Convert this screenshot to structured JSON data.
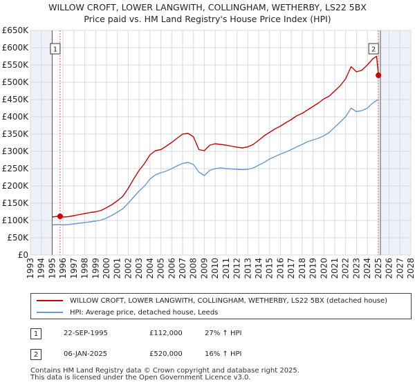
{
  "title_line1": "WILLOW CROFT, LOWER LANGWITH, COLLINGHAM, WETHERBY, LS22 5BX",
  "title_line2": "Price paid vs. HM Land Registry's House Price Index (HPI)",
  "chart_data": {
    "type": "line",
    "xlim": [
      1993,
      2028
    ],
    "ylim": [
      0,
      650000
    ],
    "x_ticks": [
      "1993",
      "1994",
      "1995",
      "1996",
      "1997",
      "1998",
      "1999",
      "2000",
      "2001",
      "2002",
      "2003",
      "2004",
      "2005",
      "2006",
      "2007",
      "2008",
      "2009",
      "2010",
      "2011",
      "2012",
      "2013",
      "2014",
      "2015",
      "2016",
      "2017",
      "2018",
      "2019",
      "2020",
      "2021",
      "2022",
      "2023",
      "2024",
      "2025",
      "2026",
      "2027",
      "2028"
    ],
    "y_ticks": [
      {
        "value": 0,
        "label": "£0"
      },
      {
        "value": 50000,
        "label": "£50K"
      },
      {
        "value": 100000,
        "label": "£100K"
      },
      {
        "value": 150000,
        "label": "£150K"
      },
      {
        "value": 200000,
        "label": "£200K"
      },
      {
        "value": 250000,
        "label": "£250K"
      },
      {
        "value": 300000,
        "label": "£300K"
      },
      {
        "value": 350000,
        "label": "£350K"
      },
      {
        "value": 400000,
        "label": "£400K"
      },
      {
        "value": 450000,
        "label": "£450K"
      },
      {
        "value": 500000,
        "label": "£500K"
      },
      {
        "value": 550000,
        "label": "£550K"
      },
      {
        "value": 600000,
        "label": "£600K"
      },
      {
        "value": 650000,
        "label": "£650K"
      }
    ],
    "data_range": [
      1995.0,
      2025.2
    ],
    "series": [
      {
        "name": "WILLOW CROFT, LOWER LANGWITH, COLLINGHAM, WETHERBY, LS22 5BX (detached house)",
        "color": "#cc0000",
        "x": [
          1995.0,
          1995.5,
          1995.73,
          1996.0,
          1996.5,
          1997.0,
          1997.5,
          1998.0,
          1998.5,
          1999.0,
          1999.5,
          2000.0,
          2000.5,
          2001.0,
          2001.5,
          2002.0,
          2002.5,
          2003.0,
          2003.5,
          2004.0,
          2004.5,
          2005.0,
          2005.5,
          2006.0,
          2006.5,
          2007.0,
          2007.5,
          2008.0,
          2008.5,
          2009.0,
          2009.5,
          2010.0,
          2010.5,
          2011.0,
          2011.5,
          2012.0,
          2012.5,
          2013.0,
          2013.5,
          2014.0,
          2014.5,
          2015.0,
          2015.5,
          2016.0,
          2016.5,
          2017.0,
          2017.5,
          2018.0,
          2018.5,
          2019.0,
          2019.5,
          2020.0,
          2020.5,
          2021.0,
          2021.5,
          2022.0,
          2022.5,
          2023.0,
          2023.5,
          2024.0,
          2024.5,
          2024.85,
          2025.02
        ],
        "values": [
          110000,
          112000,
          112000,
          110000,
          111000,
          114000,
          117000,
          120000,
          123000,
          125000,
          129000,
          137000,
          146000,
          157000,
          170000,
          193000,
          220000,
          245000,
          265000,
          290000,
          302000,
          305000,
          315000,
          326000,
          338000,
          350000,
          352000,
          342000,
          305000,
          302000,
          318000,
          322000,
          320000,
          318000,
          315000,
          312000,
          310000,
          313000,
          320000,
          332000,
          345000,
          355000,
          365000,
          373000,
          383000,
          392000,
          403000,
          410000,
          420000,
          430000,
          440000,
          452000,
          460000,
          475000,
          490000,
          510000,
          545000,
          530000,
          535000,
          550000,
          568000,
          575000,
          520000
        ]
      },
      {
        "name": "HPI: Average price, detached house, Leeds",
        "color": "#6699cc",
        "x": [
          1995.0,
          1995.5,
          1996.0,
          1996.5,
          1997.0,
          1997.5,
          1998.0,
          1998.5,
          1999.0,
          1999.5,
          2000.0,
          2000.5,
          2001.0,
          2001.5,
          2002.0,
          2002.5,
          2003.0,
          2003.5,
          2004.0,
          2004.5,
          2005.0,
          2005.5,
          2006.0,
          2006.5,
          2007.0,
          2007.5,
          2008.0,
          2008.5,
          2009.0,
          2009.5,
          2010.0,
          2010.5,
          2011.0,
          2011.5,
          2012.0,
          2012.5,
          2013.0,
          2013.5,
          2014.0,
          2014.5,
          2015.0,
          2015.5,
          2016.0,
          2016.5,
          2017.0,
          2017.5,
          2018.0,
          2018.5,
          2019.0,
          2019.5,
          2020.0,
          2020.5,
          2021.0,
          2021.5,
          2022.0,
          2022.5,
          2023.0,
          2023.5,
          2024.0,
          2024.5,
          2025.0
        ],
        "values": [
          87000,
          88000,
          87000,
          88000,
          90000,
          92000,
          94000,
          96000,
          98000,
          101000,
          107000,
          115000,
          124000,
          134000,
          150000,
          168000,
          185000,
          200000,
          220000,
          232000,
          238000,
          243000,
          250000,
          258000,
          265000,
          268000,
          262000,
          240000,
          230000,
          245000,
          250000,
          252000,
          250000,
          249000,
          248000,
          247000,
          248000,
          252000,
          260000,
          268000,
          278000,
          285000,
          292000,
          298000,
          305000,
          313000,
          320000,
          328000,
          333000,
          338000,
          345000,
          355000,
          370000,
          385000,
          400000,
          425000,
          415000,
          418000,
          425000,
          440000,
          450000
        ]
      }
    ],
    "annotations": [
      {
        "label": "1",
        "x": 1995.73,
        "value": 112000
      },
      {
        "label": "2",
        "x": 2025.02,
        "value": 520000
      }
    ]
  },
  "legend": {
    "red_label": "WILLOW CROFT, LOWER LANGWITH, COLLINGHAM, WETHERBY, LS22 5BX (detached house)",
    "blue_label": "HPI: Average price, detached house, Leeds",
    "red_color": "#cc0000",
    "blue_color": "#6699cc"
  },
  "sales": [
    {
      "num": "1",
      "date": "22-SEP-1995",
      "price": "£112,000",
      "hpi": "27% ↑ HPI"
    },
    {
      "num": "2",
      "date": "06-JAN-2025",
      "price": "£520,000",
      "hpi": "16% ↑ HPI"
    }
  ],
  "footer_line1": "Contains HM Land Registry data © Crown copyright and database right 2025.",
  "footer_line2": "This data is licensed under the Open Government Licence v3.0."
}
